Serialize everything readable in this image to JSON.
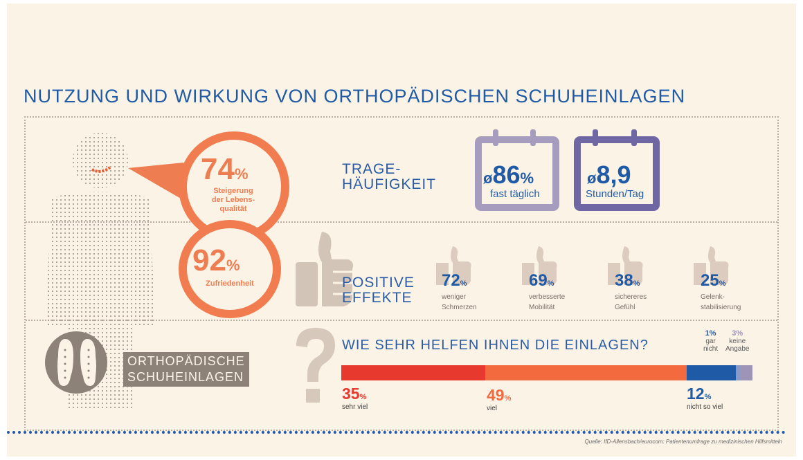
{
  "title": "NUTZUNG UND WIRKUNG VON ORTHOPÄDISCHEN SCHUHEINLAGEN",
  "colors": {
    "orange": "#ef7d52",
    "blue": "#1f5aa6",
    "lavender": "#9b8fb4",
    "taupe": "#8d8278",
    "red": "#e8392f"
  },
  "bubbles": [
    {
      "value": "74",
      "unit": "%",
      "label_lines": [
        "Steigerung",
        "der Lebens-",
        "qualität"
      ]
    },
    {
      "value": "92",
      "unit": "%",
      "label_lines": [
        "Zufriedenheit"
      ]
    }
  ],
  "tragehaeufigkeit": {
    "heading_lines": [
      "TRAGE-",
      "HÄUFIGKEIT"
    ],
    "cal1": {
      "prefix": "ø",
      "value": "86",
      "unit": "%",
      "label": "fast täglich"
    },
    "cal2": {
      "prefix": "ø",
      "value": "8,9",
      "label": "Stunden/Tag"
    }
  },
  "effekte": {
    "heading_lines": [
      "POSITIVE",
      "EFFEKTE"
    ],
    "items": [
      {
        "value": "72",
        "unit": "%",
        "label_lines": [
          "weniger",
          "Schmerzen"
        ],
        "icon": "thumbs-up-icon"
      },
      {
        "value": "69",
        "unit": "%",
        "label_lines": [
          "verbesserte",
          "Mobilität"
        ],
        "icon": "thumbs-up-icon"
      },
      {
        "value": "38",
        "unit": "%",
        "label_lines": [
          "sichereres",
          "Gefühl"
        ],
        "icon": "thumbs-up-icon"
      },
      {
        "value": "25",
        "unit": "%",
        "label_lines": [
          "Gelenk-",
          "stabilisierung"
        ],
        "icon": "thumbs-up-icon"
      }
    ]
  },
  "insoles_label_lines": [
    "ORTHOPÄDISCHE",
    "SCHUHEINLAGEN"
  ],
  "question": {
    "heading": "WIE SEHR HELFEN IHNEN DIE EINLAGEN?",
    "segments": [
      {
        "value": 35,
        "display": "35",
        "unit": "%",
        "label": "sehr viel",
        "color": "#e8392f"
      },
      {
        "value": 49,
        "display": "49",
        "unit": "%",
        "label": "viel",
        "color": "#f26a3d"
      },
      {
        "value": 12,
        "display": "12",
        "unit": "%",
        "label": "nicht so viel",
        "color": "#1f5aa6"
      },
      {
        "value": 1,
        "display": "1%",
        "label_lines": [
          "gar",
          "nicht"
        ],
        "color": "#8a9ac8"
      },
      {
        "value": 3,
        "display": "3%",
        "label_lines": [
          "keine",
          "Angabe"
        ],
        "color": "#9d94b8"
      }
    ]
  },
  "source": "Quelle: IfD-Allensbach/eurocom: Patientenumfrage zu medizinischen Hilfsmitteln"
}
